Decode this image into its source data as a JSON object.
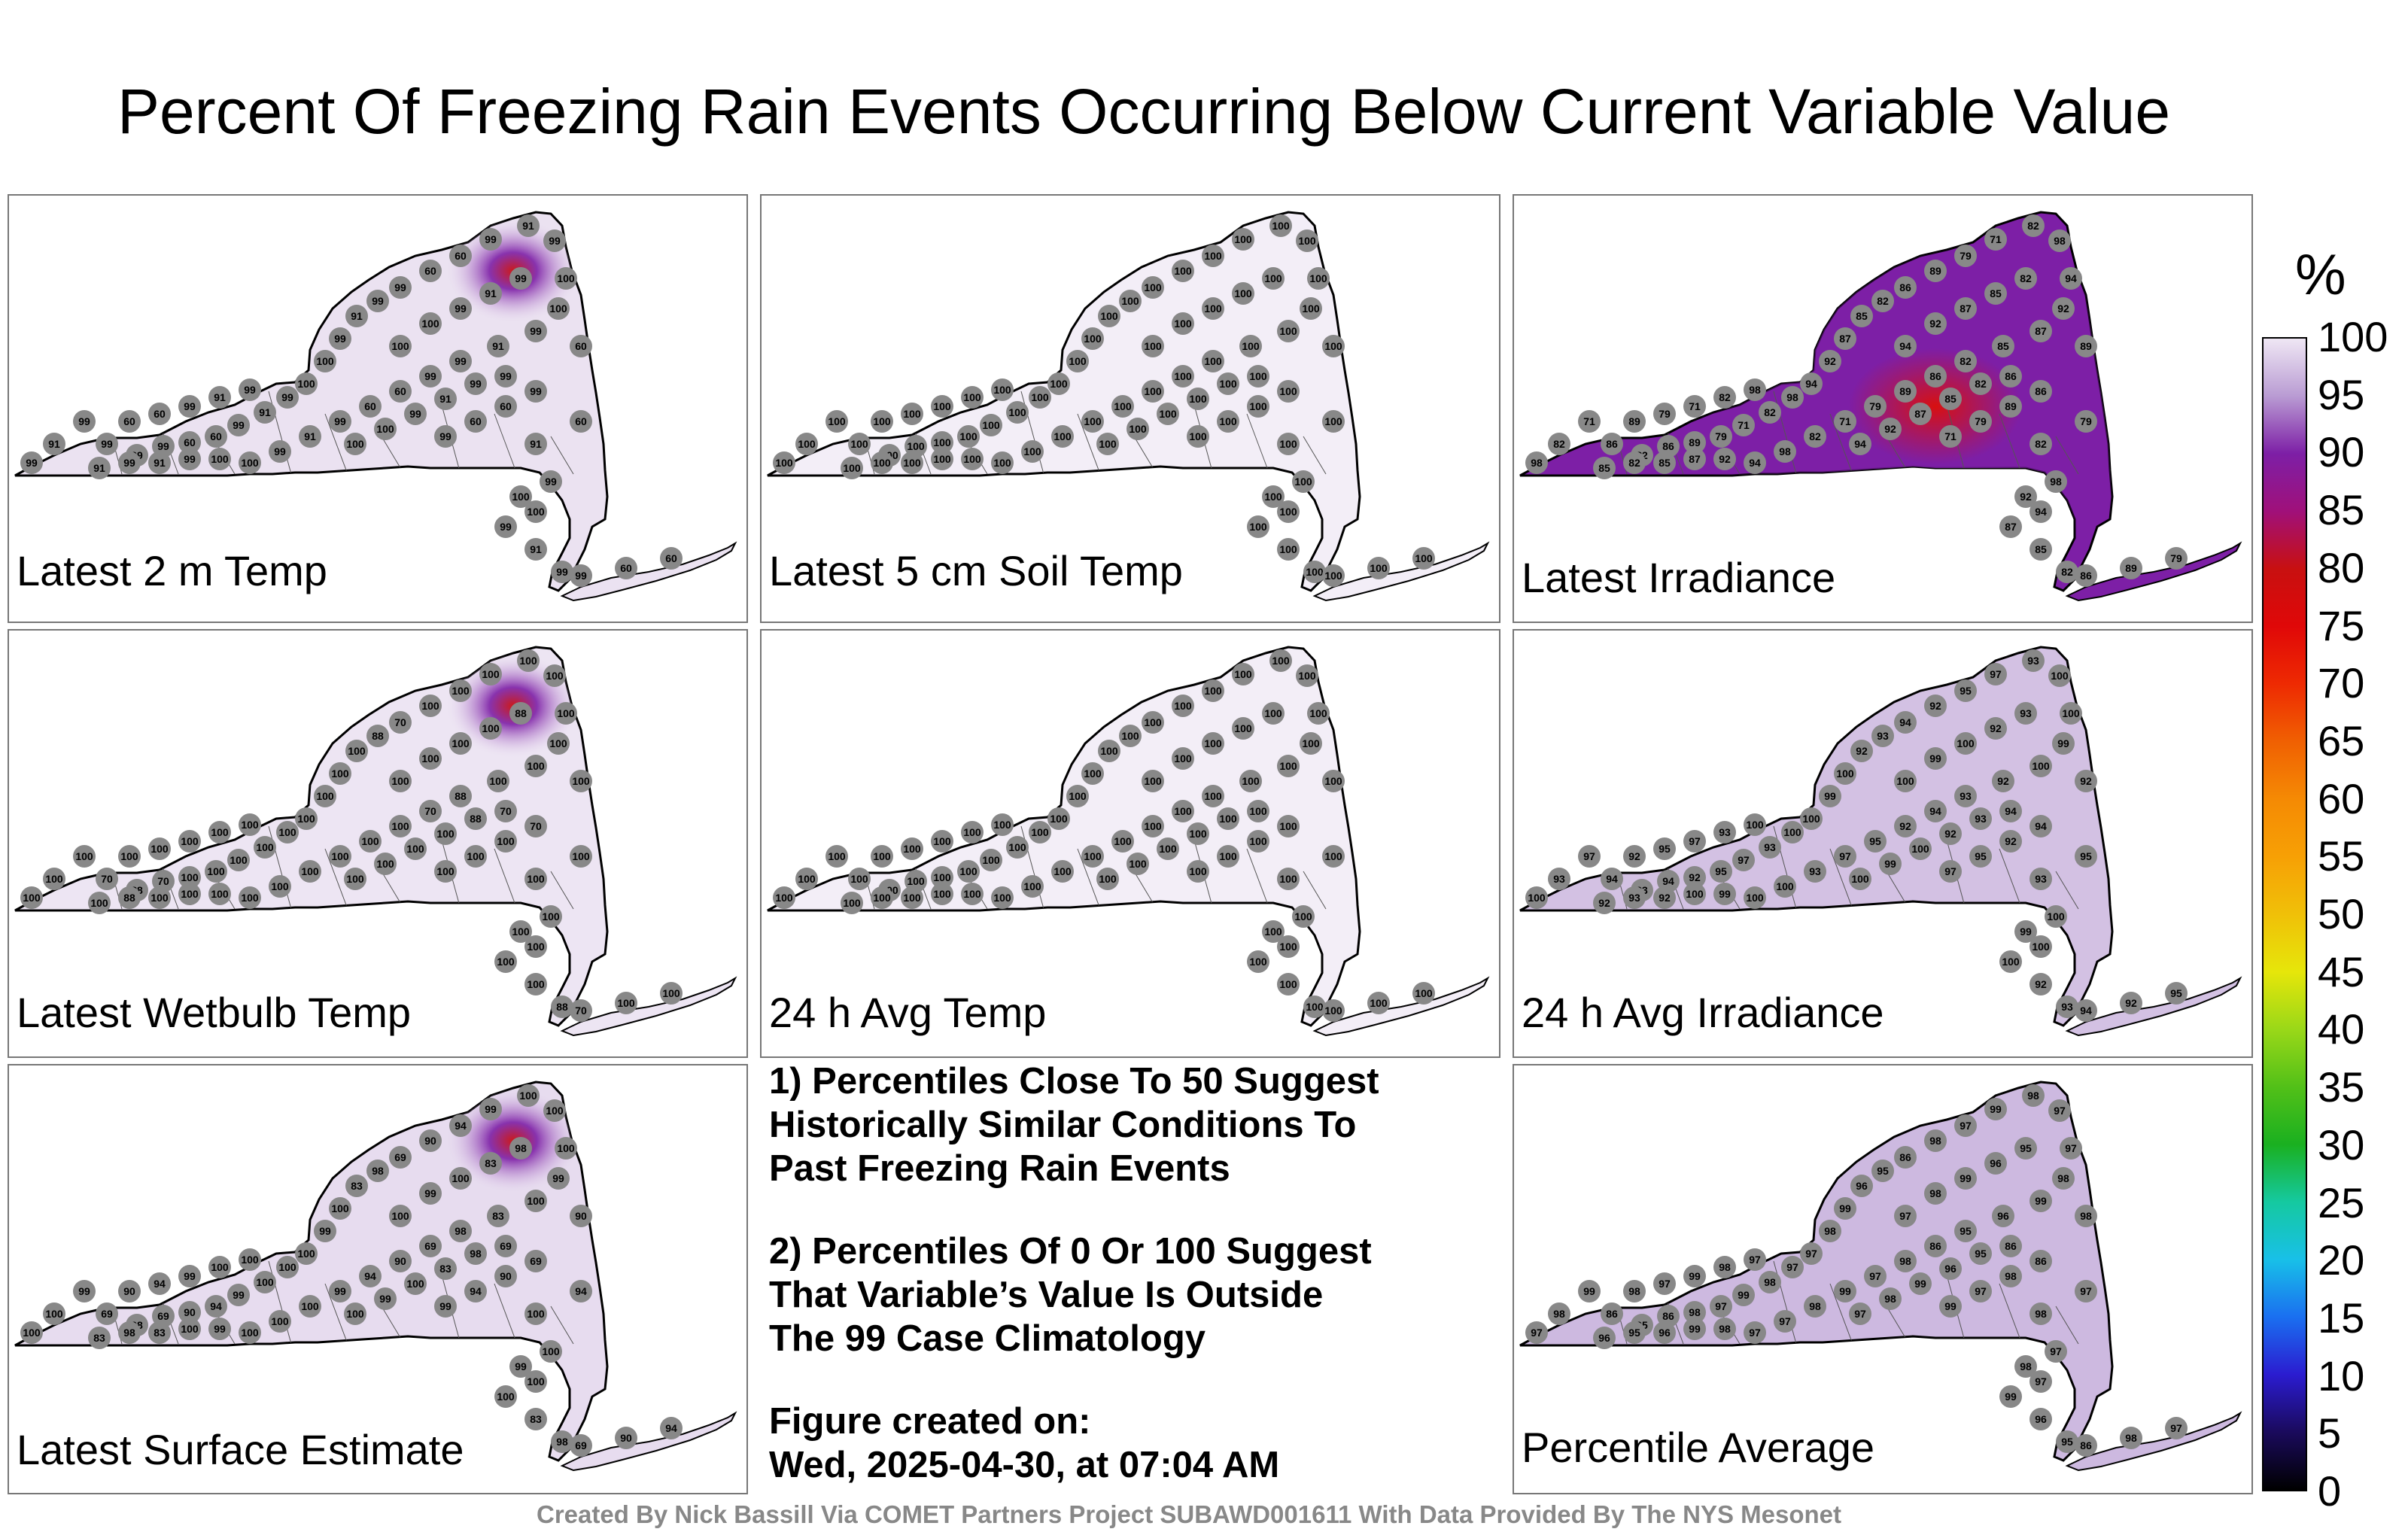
{
  "title": "Percent Of Freezing Rain Events Occurring Below Current Variable Value",
  "panels": [
    {
      "label": "Latest 2 m Temp",
      "fill": "#ebe2f1",
      "hot": {
        "color": "#cc1a1a",
        "value": 60
      },
      "sample_values": [
        "91",
        "99",
        "99",
        "60",
        "60",
        "99",
        "91",
        "99",
        "100",
        "100",
        "99"
      ]
    },
    {
      "label": "Latest 5 cm Soil Temp",
      "fill": "#f3eef7",
      "hot": null,
      "sample_values": [
        "100",
        "100",
        "100",
        "100",
        "100",
        "100",
        "100",
        "100",
        "100",
        "100",
        "100"
      ]
    },
    {
      "label": "Latest Irradiance",
      "fill": "#7d1fa6",
      "hot": {
        "color": "#d81010",
        "value": 71
      },
      "sample_values": [
        "85",
        "82",
        "86",
        "89",
        "79",
        "71",
        "82",
        "98",
        "94",
        "92",
        "87"
      ]
    },
    {
      "label": "Latest Wetbulb Temp",
      "fill": "#ede5f3",
      "hot": {
        "color": "#cc1a1a",
        "value": 70
      },
      "sample_values": [
        "100",
        "88",
        "70",
        "100",
        "100",
        "100",
        "100",
        "100",
        "100",
        "100",
        "100"
      ]
    },
    {
      "label": "24 h Avg Temp",
      "fill": "#f3eef7",
      "hot": null,
      "sample_values": [
        "100",
        "100",
        "100",
        "100",
        "100",
        "100",
        "100",
        "100",
        "100",
        "100",
        "100"
      ]
    },
    {
      "label": "24 h Avg Irradiance",
      "fill": "#d3c1e3",
      "hot": null,
      "sample_values": [
        "92",
        "93",
        "94",
        "92",
        "95",
        "97",
        "93",
        "100",
        "100",
        "99",
        "100"
      ]
    },
    {
      "label": "Latest Surface Estimate",
      "fill": "#e7dcef",
      "hot": {
        "color": "#cc1a1a",
        "value": 69
      },
      "sample_values": [
        "83",
        "98",
        "69",
        "90",
        "94",
        "99",
        "100",
        "100",
        "100",
        "99",
        "100"
      ]
    },
    {
      "label": "Percentile Average",
      "fill": "#cdb9e0",
      "hot": null,
      "sample_values": [
        "96",
        "95",
        "86",
        "98",
        "97",
        "99",
        "98",
        "97",
        "97",
        "98",
        "99"
      ]
    }
  ],
  "notes": [
    "1) Percentiles Close To 50 Suggest\nHistorically Similar Conditions To\nPast Freezing Rain Events",
    "2) Percentiles Of 0 Or 100 Suggest\nThat Variable’s Value Is Outside\nThe 99 Case Climatology",
    "Figure created on:\nWed, 2025-04-30, at 07:04 AM"
  ],
  "footer": "Created By Nick Bassill Via COMET Partners Project SUBAWD001611 With Data Provided By The NYS Mesonet",
  "colorbar": {
    "unit": "%",
    "ticks": [
      "0",
      "5",
      "10",
      "15",
      "20",
      "25",
      "30",
      "35",
      "40",
      "45",
      "50",
      "55",
      "60",
      "65",
      "70",
      "75",
      "80",
      "85",
      "90",
      "95",
      "100"
    ],
    "colors": [
      "#000000",
      "#1a0a5c",
      "#2b1cd0",
      "#1a6ff0",
      "#18c0e8",
      "#15c9a0",
      "#1ab020",
      "#52c018",
      "#9ad818",
      "#e6e60a",
      "#f0c008",
      "#f7a005",
      "#f58a04",
      "#f06002",
      "#ee2a02",
      "#e00808",
      "#c81010",
      "#a0107a",
      "#7d1fa6",
      "#b99bd3",
      "#efe7f4"
    ]
  }
}
